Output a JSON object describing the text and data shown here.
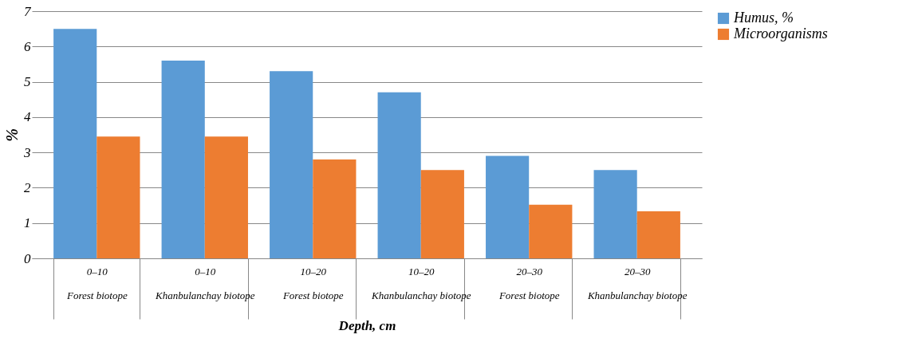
{
  "chart_data": {
    "type": "bar",
    "xlabel": "Depth, cm",
    "ylabel": "%",
    "categories": [
      "0–10\nForest biotope",
      "0–10\nKhanbulanchay biotope",
      "10–20\nForest biotope",
      "10–20\nKhanbulanchay biotope",
      "20–30\nForest biotope",
      "20–30\nKhanbulanchay biotope"
    ],
    "series": [
      {
        "name": "Humus, %",
        "color": "#5b9bd5",
        "values": [
          6.5,
          5.6,
          5.3,
          4.7,
          2.9,
          2.5
        ]
      },
      {
        "name": "Microorganisms",
        "color": "#ed7d31",
        "values": [
          3.45,
          3.45,
          2.8,
          2.5,
          1.52,
          1.33
        ]
      }
    ],
    "ylim": [
      0,
      7
    ],
    "yticks": [
      0,
      1,
      2,
      3,
      4,
      5,
      6,
      7
    ],
    "grid": "y",
    "legend": "right"
  }
}
